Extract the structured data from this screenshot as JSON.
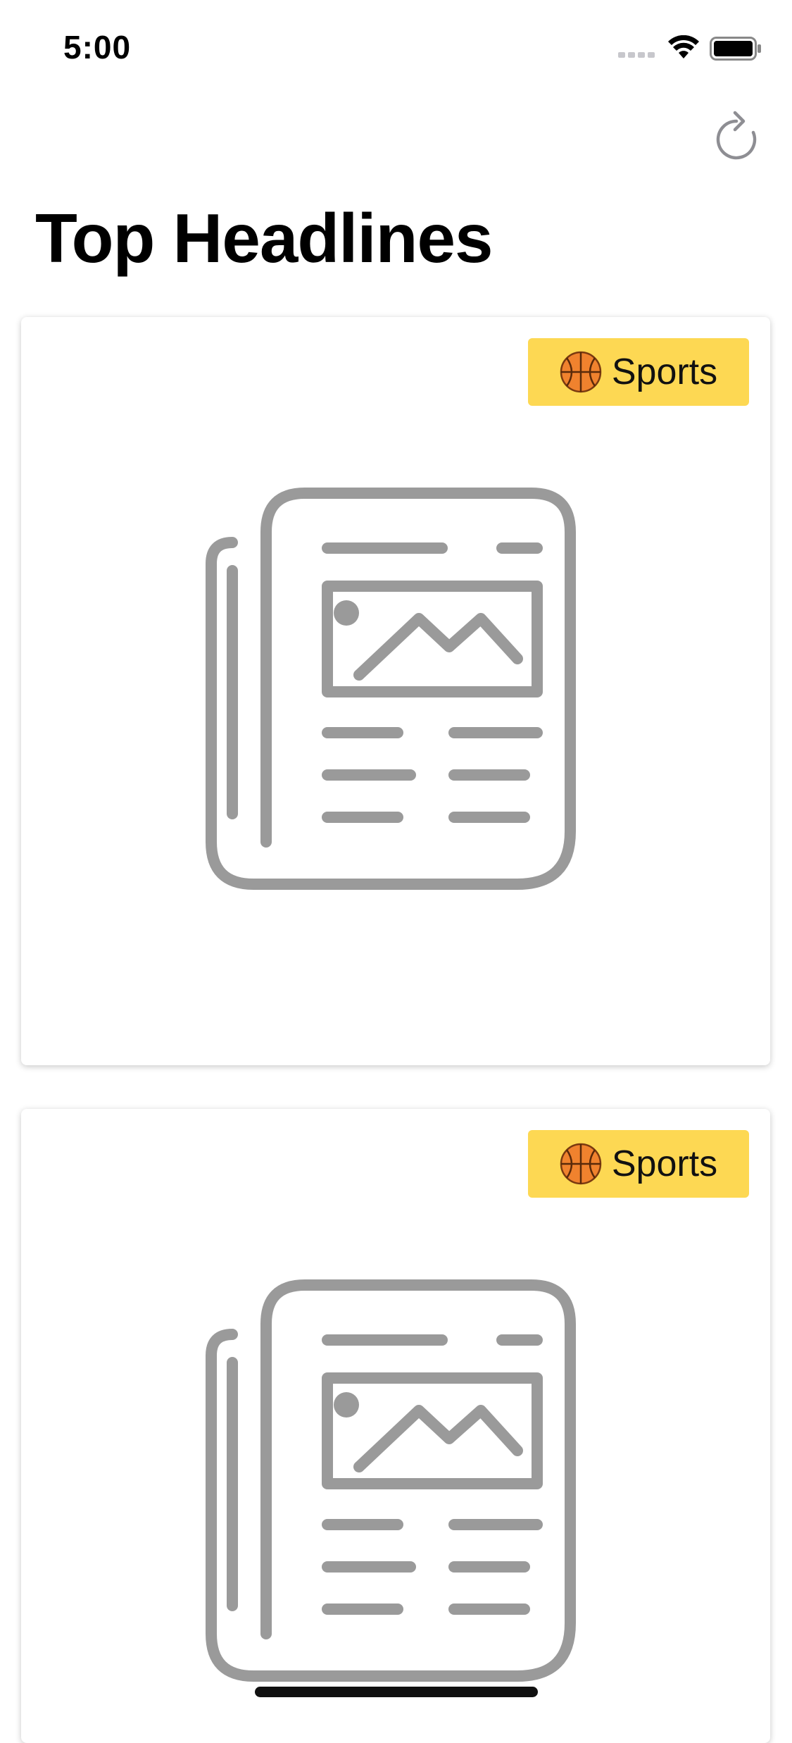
{
  "status_bar": {
    "time": "5:00",
    "icons": [
      "signal-icon",
      "wifi-icon",
      "battery-icon"
    ]
  },
  "nav": {
    "refresh_icon": "refresh-icon"
  },
  "page": {
    "title": "Top Headlines"
  },
  "articles": [
    {
      "category_emoji": "basketball-icon",
      "category_label": "Sports",
      "image_icon": "newspaper-placeholder-icon"
    },
    {
      "category_emoji": "basketball-icon",
      "category_label": "Sports",
      "image_icon": "newspaper-placeholder-icon"
    }
  ],
  "colors": {
    "badge_background": "#fdd853",
    "placeholder_gray": "#9a9a9a",
    "refresh_gray": "#8e8e93"
  }
}
